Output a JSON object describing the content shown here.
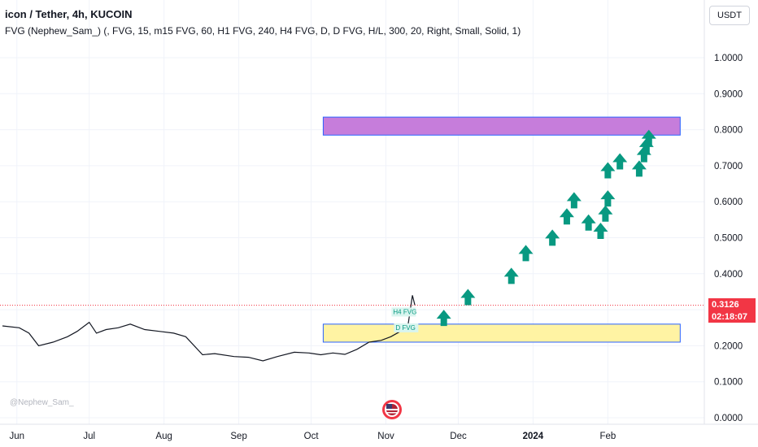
{
  "header": {
    "title": "icon / Tether, 4h, KUCOIN",
    "indicator": "FVG (Nephew_Sam_) (, FVG, 15, m15 FVG, 60, H1 FVG, 240, H4 FVG, D, D FVG, H/L, 300, 20, Right, Small, Solid, 1)",
    "currency_button": "USDT"
  },
  "price_tag": {
    "price": "0.3126",
    "countdown": "02:18:07"
  },
  "watermark": "@Nephew_Sam_",
  "colors": {
    "price_line": "#131722",
    "arrow": "#089981",
    "zone_purple": "#c67ddb",
    "zone_yellow": "#fff3a3",
    "zone_border": "#2962ff",
    "price_tag": "#f23645"
  },
  "chart_data": {
    "type": "line",
    "ylim": [
      0,
      1.1
    ],
    "y_ticks": [
      1.0,
      0.9,
      0.8,
      0.7,
      0.6,
      0.5,
      0.4,
      0.3,
      0.2,
      0.1,
      0.0
    ],
    "y_tick_labels": [
      "1.0000",
      "0.9000",
      "0.8000",
      "0.7000",
      "0.6000",
      "0.5000",
      "0.4000",
      "0.3000",
      "0.2000",
      "0.1000",
      "0.0000"
    ],
    "x_ticks": [
      {
        "date": "2023-06-01",
        "label": "Jun"
      },
      {
        "date": "2023-07-01",
        "label": "Jul"
      },
      {
        "date": "2023-08-01",
        "label": "Aug"
      },
      {
        "date": "2023-09-01",
        "label": "Sep"
      },
      {
        "date": "2023-10-01",
        "label": "Oct"
      },
      {
        "date": "2023-11-01",
        "label": "Nov"
      },
      {
        "date": "2023-12-01",
        "label": "Dec"
      },
      {
        "date": "2024-01-01",
        "label": "2024"
      },
      {
        "date": "2024-02-01",
        "label": "Feb"
      }
    ],
    "series": [
      {
        "points": [
          {
            "x": "2023-05-26",
            "y": 0.255
          },
          {
            "x": "2023-06-02",
            "y": 0.25
          },
          {
            "x": "2023-06-06",
            "y": 0.235
          },
          {
            "x": "2023-06-10",
            "y": 0.2
          },
          {
            "x": "2023-06-16",
            "y": 0.21
          },
          {
            "x": "2023-06-22",
            "y": 0.225
          },
          {
            "x": "2023-06-26",
            "y": 0.24
          },
          {
            "x": "2023-07-01",
            "y": 0.265
          },
          {
            "x": "2023-07-04",
            "y": 0.235
          },
          {
            "x": "2023-07-08",
            "y": 0.245
          },
          {
            "x": "2023-07-13",
            "y": 0.25
          },
          {
            "x": "2023-07-18",
            "y": 0.26
          },
          {
            "x": "2023-07-24",
            "y": 0.245
          },
          {
            "x": "2023-07-30",
            "y": 0.24
          },
          {
            "x": "2023-08-05",
            "y": 0.235
          },
          {
            "x": "2023-08-10",
            "y": 0.225
          },
          {
            "x": "2023-08-17",
            "y": 0.175
          },
          {
            "x": "2023-08-22",
            "y": 0.178
          },
          {
            "x": "2023-08-30",
            "y": 0.17
          },
          {
            "x": "2023-09-05",
            "y": 0.168
          },
          {
            "x": "2023-09-11",
            "y": 0.158
          },
          {
            "x": "2023-09-17",
            "y": 0.17
          },
          {
            "x": "2023-09-24",
            "y": 0.182
          },
          {
            "x": "2023-09-30",
            "y": 0.18
          },
          {
            "x": "2023-10-05",
            "y": 0.175
          },
          {
            "x": "2023-10-10",
            "y": 0.18
          },
          {
            "x": "2023-10-15",
            "y": 0.176
          },
          {
            "x": "2023-10-20",
            "y": 0.19
          },
          {
            "x": "2023-10-25",
            "y": 0.21
          },
          {
            "x": "2023-10-30",
            "y": 0.215
          },
          {
            "x": "2023-11-03",
            "y": 0.225
          },
          {
            "x": "2023-11-07",
            "y": 0.24
          },
          {
            "x": "2023-11-10",
            "y": 0.25
          },
          {
            "x": "2023-11-12",
            "y": 0.34
          },
          {
            "x": "2023-11-13",
            "y": 0.3126
          }
        ]
      }
    ],
    "zones": [
      {
        "label": "",
        "y_low": 0.785,
        "y_high": 0.835,
        "x_start": "2023-10-06",
        "x_end": "2024-03-02",
        "color": "#c67ddb"
      },
      {
        "label": "",
        "y_low": 0.21,
        "y_high": 0.26,
        "x_start": "2023-10-06",
        "x_end": "2024-03-02",
        "color": "#fff3a3"
      }
    ],
    "annotations": [
      {
        "text": "H4 FVG",
        "x": "2023-11-04",
        "y": 0.288
      },
      {
        "text": "D FVG",
        "x": "2023-11-05",
        "y": 0.244
      }
    ],
    "arrows": [
      {
        "x": "2023-11-25",
        "y": 0.275
      },
      {
        "x": "2023-12-05",
        "y": 0.333
      },
      {
        "x": "2023-12-23",
        "y": 0.392
      },
      {
        "x": "2023-12-29",
        "y": 0.455
      },
      {
        "x": "2024-01-09",
        "y": 0.498
      },
      {
        "x": "2024-01-15",
        "y": 0.557
      },
      {
        "x": "2024-01-18",
        "y": 0.602
      },
      {
        "x": "2024-01-24",
        "y": 0.54
      },
      {
        "x": "2024-01-29",
        "y": 0.517
      },
      {
        "x": "2024-01-31",
        "y": 0.565
      },
      {
        "x": "2024-02-01",
        "y": 0.607
      },
      {
        "x": "2024-02-01",
        "y": 0.685
      },
      {
        "x": "2024-02-06",
        "y": 0.71
      },
      {
        "x": "2024-02-14",
        "y": 0.69
      },
      {
        "x": "2024-02-16",
        "y": 0.73
      },
      {
        "x": "2024-02-17",
        "y": 0.752
      },
      {
        "x": "2024-02-18",
        "y": 0.775
      }
    ]
  }
}
